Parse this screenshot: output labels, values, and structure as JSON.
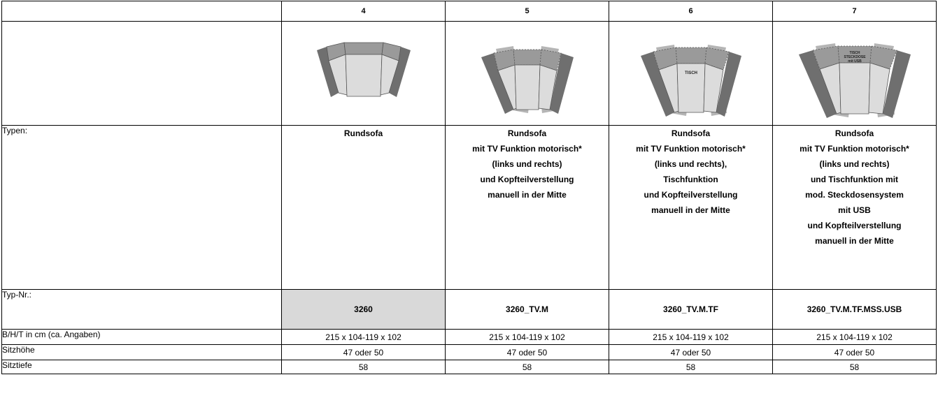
{
  "columns": [
    {
      "number": "4",
      "types_lines": [
        "Rundsofa"
      ],
      "typ_nr": "3260",
      "dimensions": "215 x 104-119 x 102",
      "seat_height": "47 oder 50",
      "seat_depth": "58",
      "image_labels": []
    },
    {
      "number": "5",
      "types_lines": [
        "Rundsofa",
        "mit TV Funktion motorisch*",
        "(links und rechts)",
        "und Kopfteilverstellung",
        "manuell in der Mitte"
      ],
      "typ_nr": "3260_TV.M",
      "dimensions": "215 x 104-119 x 102",
      "seat_height": "47 oder 50",
      "seat_depth": "58",
      "image_labels": []
    },
    {
      "number": "6",
      "types_lines": [
        "Rundsofa",
        "mit TV Funktion motorisch*",
        "(links und rechts),",
        "Tischfunktion",
        "und Kopfteilverstellung",
        "manuell in der Mitte"
      ],
      "typ_nr": "3260_TV.M.TF",
      "dimensions": "215 x 104-119 x 102",
      "seat_height": "47 oder 50",
      "seat_depth": "58",
      "image_labels": [
        "TISCH"
      ]
    },
    {
      "number": "7",
      "types_lines": [
        "Rundsofa",
        "mit TV Funktion motorisch*",
        "(links und rechts)",
        "und Tischfunktion mit",
        "mod. Steckdosensystem",
        "mit USB",
        "und Kopfteilverstellung",
        "manuell in der Mitte"
      ],
      "typ_nr": "3260_TV.M.TF.MSS.USB",
      "dimensions": "215 x 104-119 x 102",
      "seat_height": "47 oder 50",
      "seat_depth": "58",
      "image_labels": [
        "TISCH",
        "STECKDOSE",
        "mit USB"
      ]
    }
  ],
  "row_labels": {
    "types": "Typen:",
    "typ_nr": "Typ-Nr.:",
    "dimensions": "B/H/T in cm (ca. Angaben)",
    "seat_height": "Sitzhöhe",
    "seat_depth": "Sitztiefe"
  },
  "colors": {
    "arm": "#6f6f6f",
    "back": "#9a9a9a",
    "seat": "#dcdcdc",
    "motor_panel": "#b5b5b5",
    "highlight_cell": "#d9d9d9"
  }
}
